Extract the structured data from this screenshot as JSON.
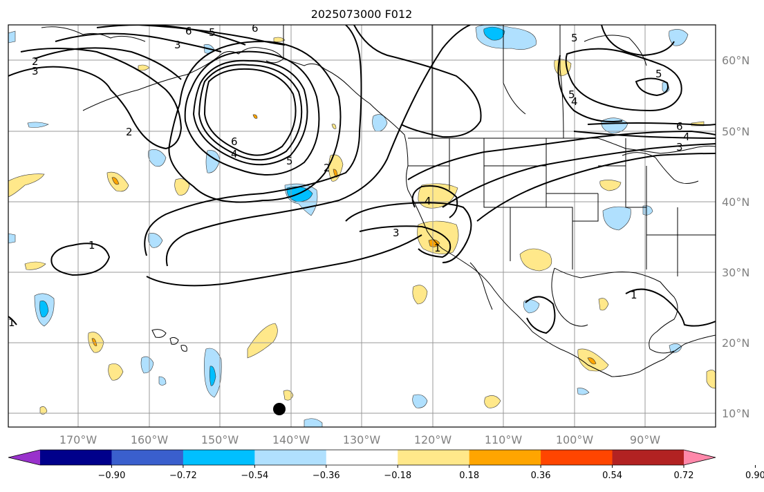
{
  "title": "2025073000 F012",
  "lon_labels": [
    "170°W",
    "160°W",
    "150°W",
    "140°W",
    "130°W",
    "120°W",
    "110°W",
    "100°W",
    "90°W"
  ],
  "lat_labels": [
    "60°N",
    "50°N",
    "40°N",
    "30°N",
    "20°N",
    "10°N"
  ],
  "colorbar": {
    "ticks": [
      "−0.90",
      "−0.72",
      "−0.54",
      "−0.36",
      "−0.18",
      "0.18",
      "0.36",
      "0.54",
      "0.72",
      "0.90"
    ],
    "colors": [
      "#9932cc",
      "#00008b",
      "#3a5fcd",
      "#00bfff",
      "#b0e0fe",
      "#ffffff",
      "#ffe88a",
      "#ffa500",
      "#ff4500",
      "#b22222",
      "#ff88aa"
    ]
  },
  "contour_labels": [
    "6",
    "5",
    "6",
    "3",
    "2",
    "3",
    "2",
    "6",
    "4",
    "5",
    "2",
    "4",
    "3",
    "1",
    "1",
    "1",
    "1",
    "5",
    "5",
    "4",
    "5",
    "6",
    "4",
    "3"
  ],
  "colors": {
    "land_line": "#000000",
    "grid": "#999999",
    "contour": "#000000",
    "neg_fill_light": "#b0e0fe",
    "neg_fill_dark": "#00bfff",
    "pos_fill_light": "#ffe88a",
    "pos_fill_dark": "#ffa500"
  }
}
